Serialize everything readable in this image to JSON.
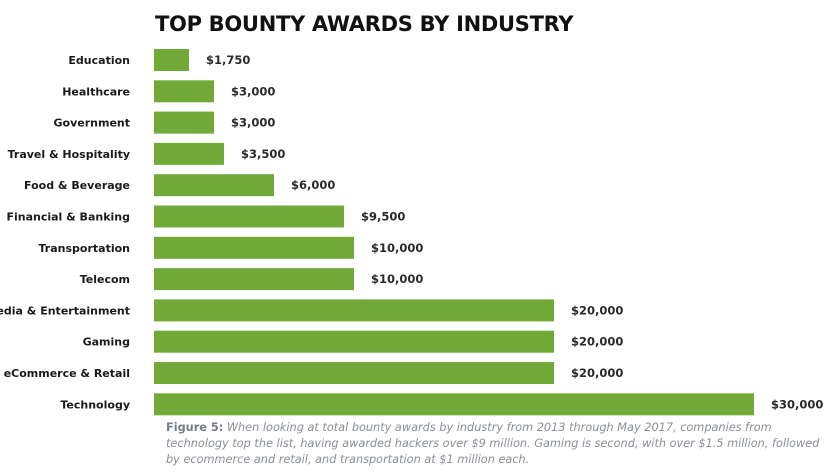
{
  "chart_data": {
    "type": "bar",
    "orientation": "horizontal",
    "title": "TOP BOUNTY AWARDS BY INDUSTRY",
    "categories": [
      "Education",
      "Healthcare",
      "Government",
      "Travel & Hospitality",
      "Food & Beverage",
      "Financial & Banking",
      "Transportation",
      "Telecom",
      "Media & Entertainment",
      "Gaming",
      "eCommerce & Retail",
      "Technology"
    ],
    "values": [
      1750,
      3000,
      3000,
      3500,
      6000,
      9500,
      10000,
      10000,
      20000,
      20000,
      20000,
      30000
    ],
    "value_labels": [
      "$1,750",
      "$3,000",
      "$3,000",
      "$3,500",
      "$6,000",
      "$9,500",
      "$10,000",
      "$10,000",
      "$20,000",
      "$20,000",
      "$20,000",
      "$30,000"
    ],
    "xlim": [
      0,
      30000
    ],
    "grid": false,
    "bar_color": "#72aa3a"
  },
  "caption": {
    "label": "Figure 5:",
    "text": " When looking at total bounty awards by industry from 2013 through May 2017, companies from technology top the list, having awarded hackers over $9 million. Gaming is second, with over $1.5 million, followed by ecommerce and retail, and transportation at $1 million each."
  }
}
